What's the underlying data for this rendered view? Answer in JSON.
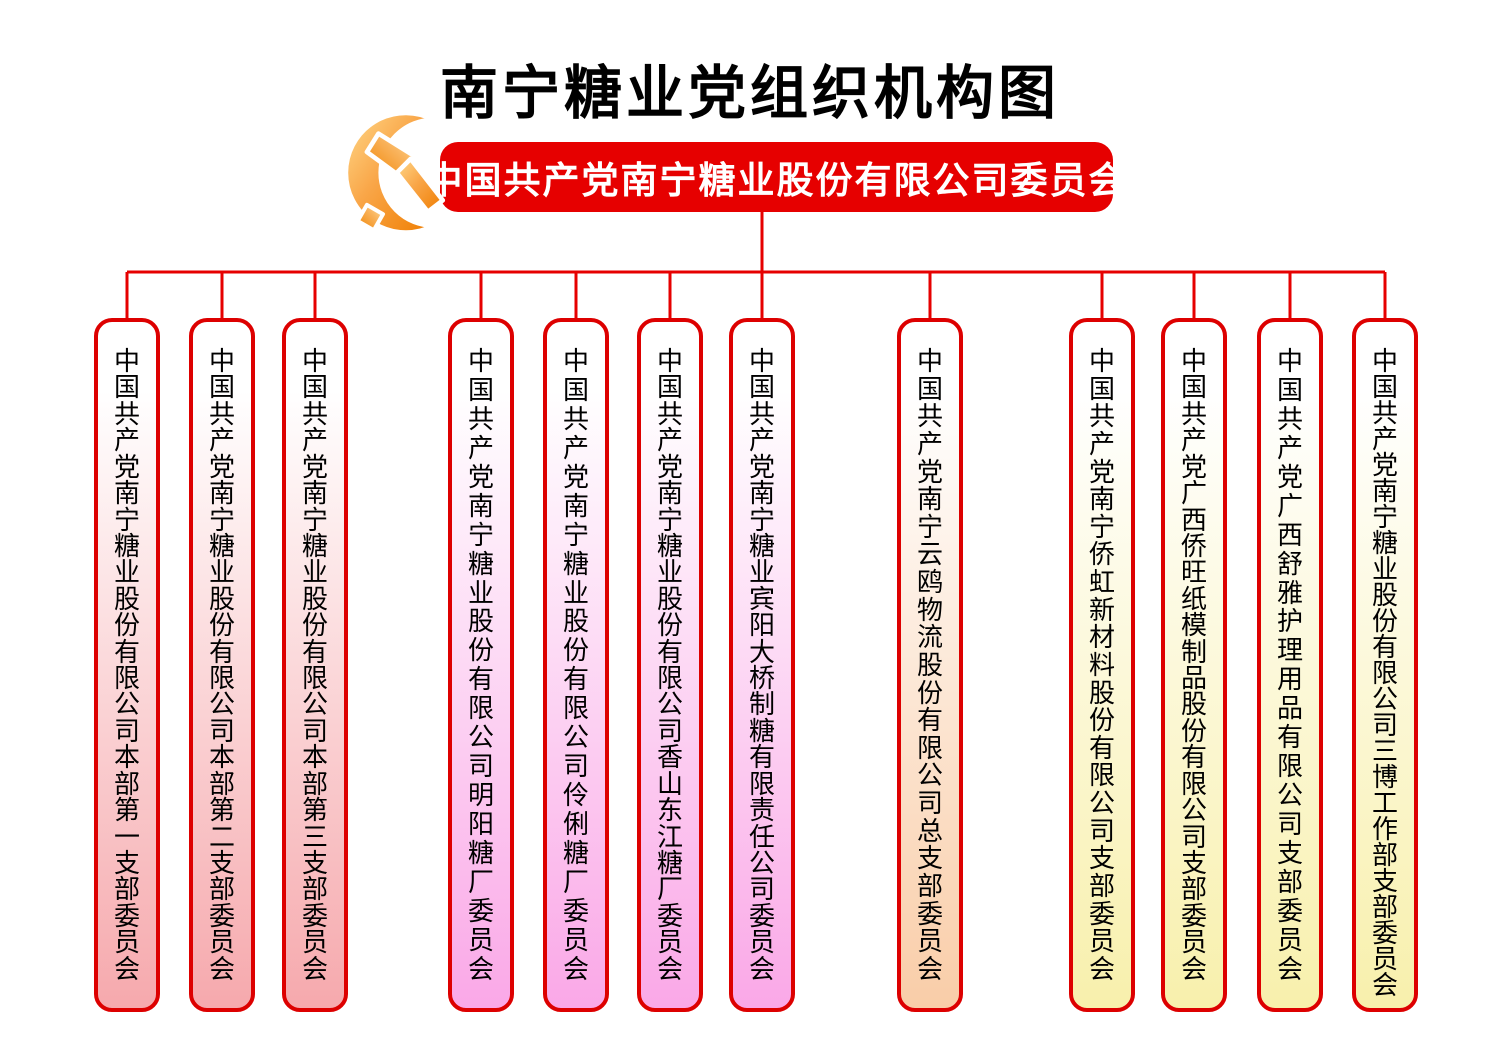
{
  "title": "南宁糖业党组织机构图",
  "root": {
    "label": "中国共产党南宁糖业股份有限公司委员会"
  },
  "emblem": {
    "icon": "party-emblem-icon"
  },
  "colors": {
    "banner_red": "#e60000",
    "node_border_red": "#dd0000",
    "connector_red": "#e60000",
    "group_pink": "#f6a9ad",
    "group_magenta": "#faa8e7",
    "group_peach": "#f9cda8",
    "group_yellow": "#f8f0ac"
  },
  "nodes": [
    {
      "label": "中国共产党南宁糖业股份有限公司本部第一支部委员会",
      "color_group": "pink"
    },
    {
      "label": "中国共产党南宁糖业股份有限公司本部第二支部委员会",
      "color_group": "pink"
    },
    {
      "label": "中国共产党南宁糖业股份有限公司本部第三支部委员会",
      "color_group": "pink"
    },
    {
      "label": "中国共产党南宁糖业股份有限公司明阳糖厂委员会",
      "color_group": "magenta"
    },
    {
      "label": "中国共产党南宁糖业股份有限公司伶俐糖厂委员会",
      "color_group": "magenta"
    },
    {
      "label": "中国共产党南宁糖业股份有限公司香山东江糖厂委员会",
      "color_group": "magenta"
    },
    {
      "label": "中国共产党南宁糖业宾阳大桥制糖有限责任公司委员会",
      "color_group": "magenta"
    },
    {
      "label": "中国共产党南宁云鸥物流股份有限公司总支部委员会",
      "color_group": "peach"
    },
    {
      "label": "中国共产党南宁侨虹新材料股份有限公司支部委员会",
      "color_group": "yellow"
    },
    {
      "label": "中国共产党广西侨旺纸模制品股份有限公司支部委员会",
      "color_group": "yellow"
    },
    {
      "label": "中国共产党广西舒雅护理用品有限公司支部委员会",
      "color_group": "yellow"
    },
    {
      "label": "中国共产党南宁糖业股份有限公司三博工作部支部委员会",
      "color_group": "yellow"
    }
  ]
}
